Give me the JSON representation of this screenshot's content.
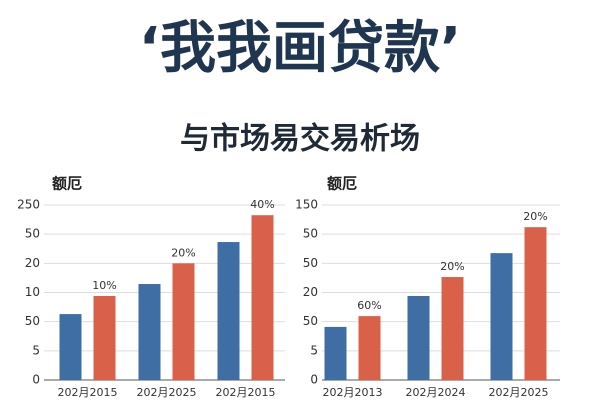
{
  "header": {
    "title": "‘我我画贷款’",
    "subtitle": "与市场易交易析场"
  },
  "chart_data": [
    {
      "type": "bar",
      "y_label": "额厄",
      "categories": [
        "202月2015",
        "202月2025",
        "202月2015"
      ],
      "series": [
        {
          "color": "#3f6ea5",
          "values": [
            2.26,
            3.29,
            4.73
          ]
        },
        {
          "color": "#d9614a",
          "values": [
            2.88,
            4.0,
            5.65
          ]
        }
      ],
      "bar_labels": [
        "10%",
        "20%",
        "40%"
      ],
      "ylim": [
        0,
        6
      ],
      "yticks": [
        {
          "value": 0,
          "label": "0"
        },
        {
          "value": 1,
          "label": "5"
        },
        {
          "value": 2,
          "label": "50"
        },
        {
          "value": 3,
          "label": "10"
        },
        {
          "value": 4,
          "label": "20"
        },
        {
          "value": 5,
          "label": "50"
        },
        {
          "value": 6,
          "label": "250"
        }
      ],
      "grid": true
    },
    {
      "type": "bar",
      "y_label": "额厄",
      "categories": [
        "202月2013",
        "202月2024",
        "202月2025"
      ],
      "series": [
        {
          "color": "#3f6ea5",
          "values": [
            1.82,
            2.88,
            4.35
          ]
        },
        {
          "color": "#d9614a",
          "values": [
            2.19,
            3.53,
            5.24
          ]
        }
      ],
      "bar_labels": [
        "60%",
        "20%",
        "20%"
      ],
      "ylim": [
        0,
        6
      ],
      "yticks": [
        {
          "value": 0,
          "label": "0"
        },
        {
          "value": 1,
          "label": "5"
        },
        {
          "value": 2,
          "label": "50"
        },
        {
          "value": 3,
          "label": "20"
        },
        {
          "value": 4,
          "label": "50"
        },
        {
          "value": 5,
          "label": "50"
        },
        {
          "value": 6,
          "label": "150"
        }
      ],
      "grid": true
    }
  ]
}
